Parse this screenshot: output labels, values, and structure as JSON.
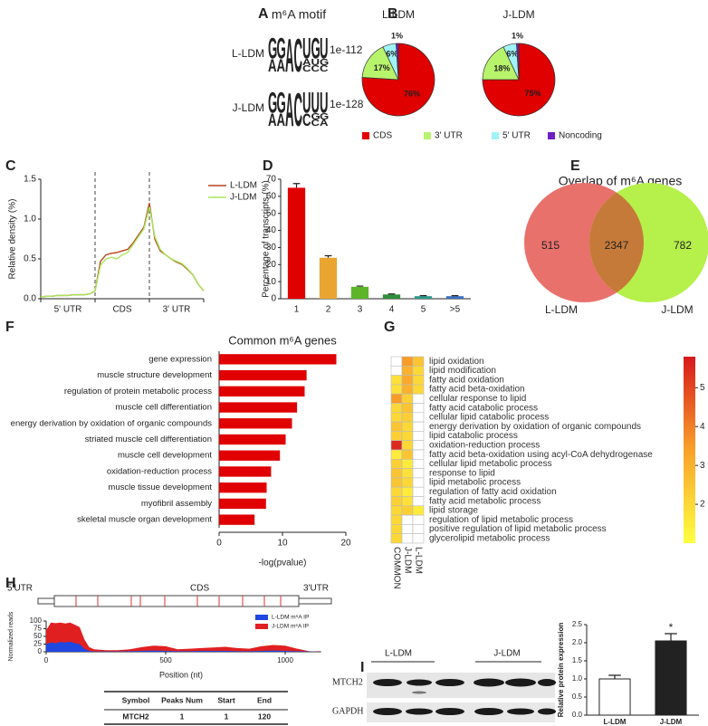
{
  "chart_data": [
    {
      "type": "logo",
      "label": "A",
      "title": "m⁶A motif",
      "letter_colors": {
        "G": "#f2a33a",
        "A": "#3a9a3a",
        "C": "#2b5cab",
        "U": "#d9262b"
      },
      "rows": [
        {
          "name": "L-LDM",
          "pvalue": "1e-112",
          "logo": [
            [
              "G",
              "A"
            ],
            [
              "G",
              "A"
            ],
            [
              "A"
            ],
            [
              "C"
            ],
            [
              "U",
              "A",
              "C"
            ],
            [
              "G",
              "U",
              "C"
            ],
            [
              "U",
              "G",
              "C"
            ]
          ]
        },
        {
          "name": "J-LDM",
          "pvalue": "1e-128",
          "logo": [
            [
              "G",
              "A"
            ],
            [
              "G",
              "A"
            ],
            [
              "A"
            ],
            [
              "C"
            ],
            [
              "U",
              "C"
            ],
            [
              "U",
              "G",
              "C"
            ],
            [
              "U",
              "G",
              "A"
            ]
          ]
        }
      ]
    },
    {
      "type": "pie",
      "label": "B",
      "categories": [
        "CDS",
        "3' UTR",
        "5' UTR",
        "Noncoding"
      ],
      "colors": [
        "#e00000",
        "#b8f36c",
        "#a0f3f6",
        "#6f1fc4"
      ],
      "pies": [
        {
          "title": "L-LDM",
          "values": [
            76,
            17,
            6,
            1
          ],
          "value_labels": [
            "76%",
            "17%",
            "6%",
            "1%"
          ]
        },
        {
          "title": "J-LDM",
          "values": [
            75,
            18,
            6,
            1
          ],
          "value_labels": [
            "75%",
            "18%",
            "6%",
            "1%"
          ]
        }
      ]
    },
    {
      "type": "line",
      "label": "C",
      "ylabel": "Relative density (%)",
      "ylim": [
        0,
        1.5
      ],
      "yticks": [
        {
          "value": 0,
          "label": "0.0"
        },
        0.5,
        {
          "value": 1,
          "label": "1.0"
        },
        1.5
      ],
      "xlim": [
        0,
        3
      ],
      "dividers": [
        1,
        2
      ],
      "regions": [
        "5' UTR",
        "CDS",
        "3' UTR"
      ],
      "x": [
        0,
        0.1,
        0.2,
        0.3,
        0.4,
        0.5,
        0.6,
        0.7,
        0.8,
        0.9,
        1,
        1.1,
        1.2,
        1.3,
        1.4,
        1.5,
        1.6,
        1.7,
        1.8,
        1.9,
        2,
        2.1,
        2.2,
        2.3,
        2.4,
        2.5,
        2.6,
        2.7,
        2.8,
        2.9,
        3
      ],
      "series": [
        {
          "name": "L-LDM",
          "color": "#b8441b",
          "values": [
            0.02,
            0.03,
            0.03,
            0.04,
            0.04,
            0.04,
            0.05,
            0.05,
            0.05,
            0.06,
            0.1,
            0.47,
            0.55,
            0.57,
            0.58,
            0.6,
            0.62,
            0.7,
            0.8,
            0.9,
            1.2,
            0.75,
            0.6,
            0.55,
            0.5,
            0.46,
            0.43,
            0.37,
            0.3,
            0.18,
            0.1
          ]
        },
        {
          "name": "J-LDM",
          "color": "#a6e85a",
          "values": [
            0.02,
            0.03,
            0.03,
            0.04,
            0.04,
            0.04,
            0.05,
            0.05,
            0.05,
            0.06,
            0.1,
            0.42,
            0.5,
            0.52,
            0.5,
            0.55,
            0.58,
            0.68,
            0.78,
            0.88,
            1.15,
            0.78,
            0.62,
            0.55,
            0.5,
            0.47,
            0.44,
            0.38,
            0.3,
            0.18,
            0.1
          ]
        }
      ]
    },
    {
      "type": "bar",
      "label": "D",
      "ylabel": "Percentage of transcripts (%)",
      "categories": [
        "1",
        "2",
        "3",
        "4",
        "5",
        ">5"
      ],
      "values": [
        65,
        24,
        7,
        2.5,
        1.5,
        1.5
      ],
      "errors": [
        2.5,
        1.2,
        0.4,
        0.3,
        0.3,
        0.3
      ],
      "colors": [
        "#e00000",
        "#eaa531",
        "#5fb52a",
        "#2f8f3a",
        "#2b9a8a",
        "#3a6fc0"
      ],
      "ylim": [
        0,
        70
      ],
      "yticks": [
        0,
        10,
        20,
        30,
        40,
        50,
        60,
        70
      ]
    },
    {
      "type": "venn",
      "label": "E",
      "title": "Overlap of m⁶A genes",
      "sets": [
        "L-LDM",
        "J-LDM"
      ],
      "values": [
        515,
        2347,
        782
      ],
      "colors": [
        "#e9716c",
        "#b6f04a"
      ],
      "overlap_color": "#c67a3a"
    },
    {
      "type": "bar",
      "orientation": "horizontal",
      "label": "F",
      "title": "Common m⁶A genes",
      "xlabel": "-log(pvalue)",
      "categories": [
        "gene expression",
        "muscle structure development",
        "regulation of protein metabolic process",
        "muscle cell differentiation",
        "energy derivation by oxidation of organic compounds",
        "striated muscle cell differentiation",
        "muscle cell development",
        "oxidation-reduction process",
        "muscle tissue development",
        "myofibril assembly",
        "skeletal muscle organ development"
      ],
      "values": [
        18.5,
        13.8,
        13.5,
        12.3,
        11.5,
        10.5,
        9.6,
        8.2,
        7.5,
        7.4,
        5.6
      ],
      "color": "#e00000",
      "xlim": [
        0,
        20
      ],
      "xticks": [
        0,
        10,
        20
      ]
    },
    {
      "type": "heatmap",
      "label": "G",
      "rows": [
        "lipid oxidation",
        "lipid modification",
        "fatty acid oxidation",
        "fatty acid beta-oxidation",
        "cellular response to lipid",
        "fatty acid catabolic process",
        "cellular lipid catabolic process",
        "energy derivation by oxidation of organic compounds",
        "lipid catabolic process",
        "oxidation-reduction process",
        "fatty acid beta-oxidation using acyl-CoA dehydrogenase",
        "cellular lipid metabolic process",
        "response to lipid",
        "lipid metabolic process",
        "regulation of fatty acid oxidation",
        "fatty acid metabolic process",
        "lipid storage",
        "regulation of lipid metabolic process",
        "positive regulation of lipid metabolic process",
        "glycerolipid metabolic process"
      ],
      "columns": [
        "COMMON",
        "J-LDM",
        "L-LDM"
      ],
      "values": [
        [
          null,
          3.5,
          2.5
        ],
        [
          null,
          3,
          2
        ],
        [
          1.8,
          3.2,
          2
        ],
        [
          1.8,
          3,
          2
        ],
        [
          3.5,
          2.2,
          null
        ],
        [
          2,
          2.5,
          null
        ],
        [
          2,
          2.2,
          null
        ],
        [
          2.5,
          2,
          null
        ],
        [
          2.2,
          2,
          null
        ],
        [
          5.5,
          2,
          null
        ],
        [
          1.5,
          2.5,
          null
        ],
        [
          2.2,
          1.5,
          null
        ],
        [
          2.5,
          1.8,
          null
        ],
        [
          2.5,
          2,
          null
        ],
        [
          2,
          1.5,
          null
        ],
        [
          2.2,
          1.8,
          null
        ],
        [
          2,
          2.2,
          1.5
        ],
        [
          2,
          null,
          null
        ],
        [
          2,
          null,
          null
        ],
        [
          2,
          null,
          null
        ]
      ],
      "clim": [
        1,
        5.8
      ],
      "colorbar_ticks": [
        2,
        3,
        4,
        5
      ],
      "colors": [
        "#ffff40",
        "#f8a12a",
        "#d7191c"
      ]
    },
    {
      "type": "area",
      "label": "H",
      "gene_model": [
        "5'UTR",
        "CDS",
        "3'UTR"
      ],
      "ylabel": "Normalized reads",
      "xlabel": "Position (nt)",
      "ylim": [
        0,
        100
      ],
      "yticks": [
        0,
        25,
        50,
        75,
        100
      ],
      "xlim": [
        0,
        1150
      ],
      "xticks": [
        0,
        500,
        1000
      ],
      "x": [
        0,
        20,
        40,
        60,
        80,
        100,
        120,
        140,
        160,
        180,
        200,
        250,
        300,
        350,
        400,
        450,
        500,
        550,
        600,
        650,
        700,
        750,
        800,
        850,
        900,
        950,
        1000,
        1050,
        1100,
        1150
      ],
      "series": [
        {
          "name": "L-LDM m⁶A IP",
          "color": "#2047e0",
          "values": [
            25,
            30,
            28,
            32,
            30,
            33,
            28,
            25,
            10,
            3,
            1,
            1,
            1,
            2,
            3,
            4,
            3,
            2,
            2,
            3,
            3,
            3,
            2,
            2,
            3,
            4,
            3,
            2,
            1,
            0
          ]
        },
        {
          "name": "J-LDM m⁶A IP",
          "color": "#e02020",
          "values": [
            70,
            95,
            93,
            95,
            92,
            95,
            88,
            80,
            40,
            15,
            8,
            5,
            5,
            8,
            15,
            20,
            18,
            8,
            10,
            12,
            14,
            16,
            12,
            10,
            18,
            22,
            20,
            10,
            2,
            0
          ]
        }
      ],
      "table": {
        "header": [
          "Symbol",
          "Peaks Num",
          "Start",
          "End"
        ],
        "rows": [
          [
            "MTCH2",
            1,
            1,
            120
          ]
        ]
      }
    },
    {
      "type": "bar",
      "label": "I",
      "blot_groups": [
        "L-LDM",
        "J-LDM"
      ],
      "blot_rows": [
        "MTCH2",
        "GAPDH"
      ],
      "ylabel": "Relative protein expression",
      "categories": [
        "L-LDM",
        "J-LDM"
      ],
      "values": [
        1,
        2.05
      ],
      "errors": [
        0.1,
        0.2
      ],
      "colors": [
        "#ffffff",
        "#222222"
      ],
      "ylim": [
        0,
        2.5
      ],
      "yticks": [
        {
          "value": 0,
          "label": "0.0"
        },
        0.5,
        {
          "value": 1,
          "label": "1.0"
        },
        1.5,
        {
          "value": 2,
          "label": "2.0"
        },
        2.5
      ],
      "annotation": "*",
      "annotation_category": "J-LDM"
    }
  ]
}
